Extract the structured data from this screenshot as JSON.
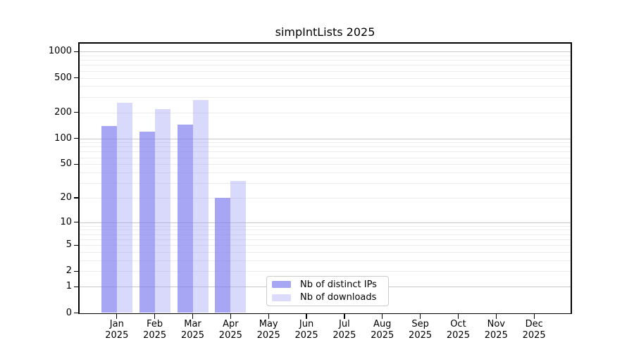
{
  "title": "simpIntLists 2025",
  "chart_data": {
    "type": "bar",
    "title": "simpIntLists 2025",
    "categories": [
      "Jan",
      "Feb",
      "Mar",
      "Apr",
      "May",
      "Jun",
      "Jul",
      "Aug",
      "Sep",
      "Oct",
      "Nov",
      "Dec"
    ],
    "x_tick_year": "2025",
    "series": [
      {
        "name": "Nb of distinct IPs",
        "color": "#a6a6f5",
        "fill": "rgba(120,120,240,0.66)",
        "values": [
          138,
          120,
          145,
          20,
          null,
          null,
          null,
          null,
          null,
          null,
          null,
          null
        ]
      },
      {
        "name": "Nb of downloads",
        "color": "#dbdbfb",
        "fill": "rgba(160,160,245,0.40)",
        "values": [
          260,
          218,
          278,
          32,
          null,
          null,
          null,
          null,
          null,
          null,
          null,
          null
        ]
      }
    ],
    "y_scale": "log1p",
    "y_ticks": [
      1000,
      500,
      200,
      100,
      50,
      20,
      10,
      5,
      2,
      1,
      0
    ],
    "ylim": [
      0,
      1265
    ],
    "grid": "horizontal-major-and-minor",
    "legend_position": "lower-center-left",
    "colors": {
      "major_gridline": "#c8c8c8",
      "minor_gridline": "#ececec",
      "spine": "#000000",
      "background": "#ffffff"
    }
  }
}
